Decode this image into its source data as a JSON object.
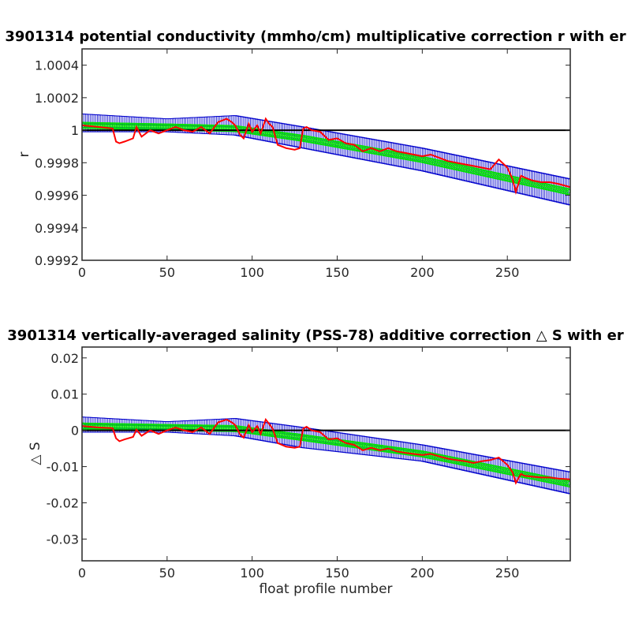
{
  "chart_data": [
    {
      "type": "line",
      "title": "3901314 potential conductivity (mmho/cm) multiplicative correction r with er",
      "xlabel": "",
      "ylabel": "r",
      "xlim": [
        0,
        287
      ],
      "ylim": [
        0.9992,
        1.0005
      ],
      "xticks": [
        0,
        50,
        100,
        150,
        200,
        250
      ],
      "yticks": [
        0.9992,
        0.9994,
        0.9996,
        0.9998,
        1,
        1.0002,
        1.0004
      ],
      "ytick_labels": [
        "0.9992",
        "0.9994",
        "0.9996",
        "0.9998",
        "1",
        "1.0002",
        "1.0004"
      ],
      "grid": false,
      "reference_line": 1,
      "colors": {
        "raw": "#ff0000",
        "fit": "#00e000",
        "error": "#0000cc",
        "reference": "#000000"
      },
      "series": [
        {
          "role": "error-bounds",
          "x": [
            0,
            50,
            90,
            130,
            200,
            287
          ],
          "upper": [
            1.0001,
            1.00007,
            1.00009,
            1.00002,
            0.99989,
            0.9997
          ],
          "lower": [
            0.99999,
            0.99999,
            0.99997,
            0.99989,
            0.99975,
            0.99954
          ]
        },
        {
          "role": "fitted-correction",
          "x": [
            0,
            50,
            90,
            130,
            200,
            287
          ],
          "values": [
            1.00003,
            1.00002,
            1.00001,
            0.99995,
            0.99982,
            0.99962
          ]
        },
        {
          "role": "raw-correction",
          "x": [
            0,
            10,
            18,
            20,
            22,
            25,
            30,
            32,
            35,
            40,
            45,
            50,
            55,
            60,
            65,
            70,
            75,
            80,
            85,
            88,
            90,
            93,
            95,
            98,
            100,
            103,
            105,
            108,
            110,
            112,
            115,
            120,
            125,
            128,
            130,
            132,
            135,
            140,
            145,
            150,
            155,
            160,
            165,
            170,
            175,
            180,
            185,
            190,
            195,
            200,
            205,
            210,
            215,
            220,
            225,
            230,
            235,
            240,
            245,
            250,
            253,
            255,
            258,
            260,
            265,
            270,
            275,
            280,
            287
          ],
          "values": [
            1.00003,
            1.00002,
            1.00001,
            0.99993,
            0.99992,
            0.99993,
            0.99995,
            1.00002,
            0.99996,
            1.0,
            0.99998,
            1.0,
            1.00002,
            1.0,
            0.99999,
            1.00002,
            0.99998,
            1.00005,
            1.00007,
            1.00005,
            1.00003,
            0.99997,
            0.99995,
            1.00004,
            0.99999,
            1.00003,
            0.99998,
            1.00007,
            1.00004,
            1.00002,
            0.99991,
            0.99989,
            0.99988,
            0.99989,
            1.00001,
            1.00002,
            1.0,
            0.99999,
            0.99994,
            0.99995,
            0.99992,
            0.99991,
            0.99987,
            0.99989,
            0.99987,
            0.99989,
            0.99987,
            0.99986,
            0.99985,
            0.99984,
            0.99985,
            0.99983,
            0.99981,
            0.9998,
            0.99979,
            0.99978,
            0.99977,
            0.99976,
            0.99982,
            0.99977,
            0.9997,
            0.99962,
            0.99972,
            0.99971,
            0.99969,
            0.99968,
            0.99968,
            0.99967,
            0.99965
          ]
        }
      ]
    },
    {
      "type": "line",
      "title": "3901314 vertically-averaged salinity (PSS-78) additive correction △ S with er",
      "xlabel": "float profile number",
      "ylabel": "△ S",
      "xlim": [
        0,
        287
      ],
      "ylim": [
        -0.036,
        0.023
      ],
      "xticks": [
        0,
        50,
        100,
        150,
        200,
        250
      ],
      "yticks": [
        -0.03,
        -0.02,
        -0.01,
        0,
        0.01,
        0.02
      ],
      "ytick_labels": [
        "-0.03",
        "-0.02",
        "-0.01",
        "0",
        "0.01",
        "0.02"
      ],
      "grid": false,
      "reference_line": 0,
      "colors": {
        "raw": "#ff0000",
        "fit": "#00e000",
        "error": "#0000cc",
        "reference": "#000000"
      },
      "series": [
        {
          "role": "error-bounds",
          "x": [
            0,
            50,
            90,
            130,
            200,
            287
          ],
          "upper": [
            0.0037,
            0.0024,
            0.0033,
            0.0008,
            -0.004,
            -0.0115
          ],
          "lower": [
            -0.0005,
            -0.0005,
            -0.0015,
            -0.0048,
            -0.0085,
            -0.0175
          ]
        },
        {
          "role": "fitted-correction",
          "x": [
            0,
            50,
            90,
            130,
            200,
            287
          ],
          "values": [
            0.0012,
            0.0008,
            0.0005,
            -0.002,
            -0.0065,
            -0.0148
          ]
        },
        {
          "role": "raw-correction",
          "x": [
            0,
            10,
            18,
            20,
            22,
            25,
            30,
            32,
            35,
            40,
            45,
            50,
            55,
            60,
            65,
            70,
            75,
            80,
            85,
            88,
            90,
            93,
            95,
            98,
            100,
            103,
            105,
            108,
            110,
            112,
            115,
            120,
            125,
            128,
            130,
            132,
            135,
            140,
            145,
            150,
            155,
            160,
            165,
            170,
            175,
            180,
            185,
            190,
            195,
            200,
            205,
            210,
            215,
            220,
            225,
            230,
            235,
            240,
            245,
            250,
            253,
            255,
            258,
            260,
            265,
            270,
            275,
            280,
            287
          ],
          "values": [
            0.0012,
            0.0008,
            0.0006,
            -0.0022,
            -0.003,
            -0.0025,
            -0.0018,
            0.0002,
            -0.0015,
            0.0,
            -0.001,
            0.0,
            0.0008,
            0.0,
            -0.0005,
            0.0008,
            -0.001,
            0.0022,
            0.003,
            0.0022,
            0.0015,
            -0.0012,
            -0.002,
            0.0015,
            -0.0005,
            0.0012,
            -0.001,
            0.003,
            0.0018,
            0.0005,
            -0.0035,
            -0.0045,
            -0.0048,
            -0.0045,
            0.0005,
            0.001,
            0.0,
            -0.0005,
            -0.0025,
            -0.0022,
            -0.0035,
            -0.004,
            -0.0055,
            -0.0048,
            -0.0055,
            -0.005,
            -0.0058,
            -0.0062,
            -0.0065,
            -0.0068,
            -0.0065,
            -0.0072,
            -0.0078,
            -0.0082,
            -0.0085,
            -0.009,
            -0.0085,
            -0.0082,
            -0.0075,
            -0.0095,
            -0.0115,
            -0.0145,
            -0.012,
            -0.0125,
            -0.0128,
            -0.013,
            -0.013,
            -0.0133,
            -0.0135
          ]
        }
      ]
    }
  ]
}
